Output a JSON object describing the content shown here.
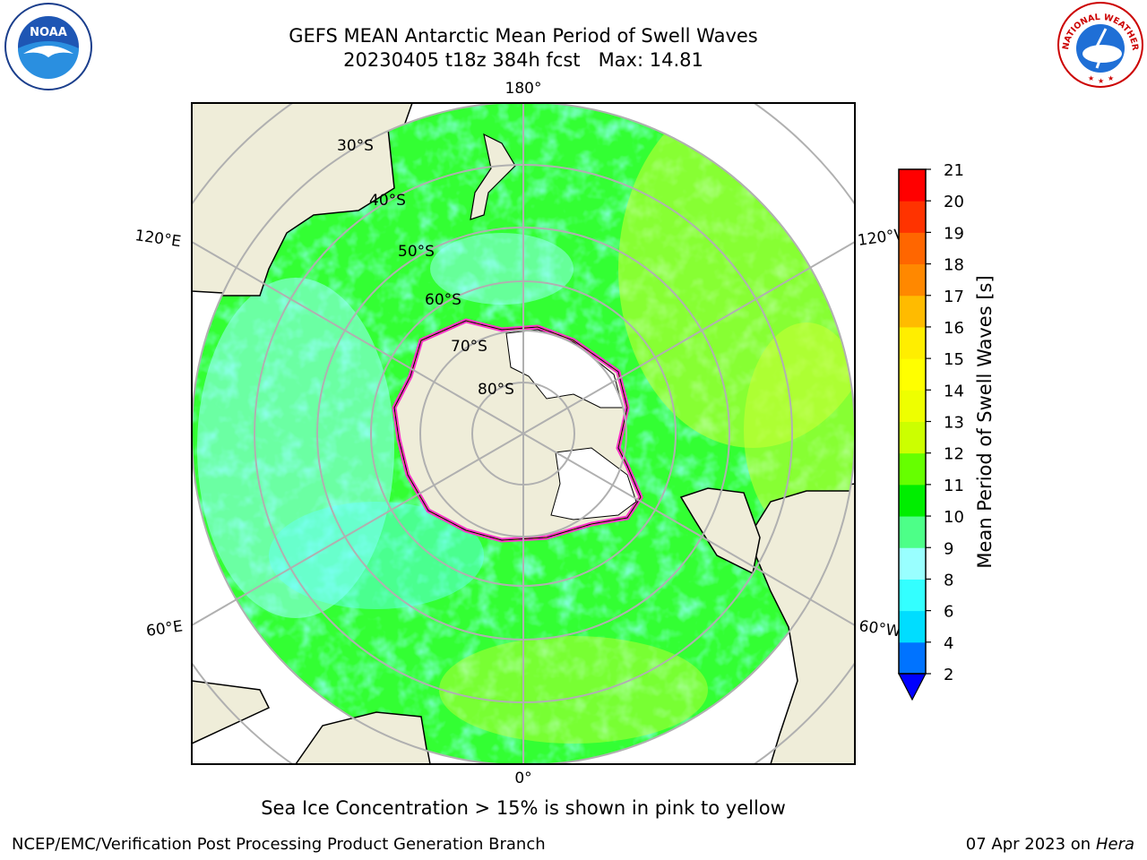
{
  "title": {
    "line1": "GEFS MEAN Antarctic Mean Period of Swell Waves",
    "line2": "20230405 t18z 384h fcst   Max: 14.81"
  },
  "map": {
    "projection": "south polar stereographic",
    "lon_labels": [
      "180°",
      "120°E",
      "120°W",
      "60°E",
      "60°W",
      "0°"
    ],
    "lat_labels": [
      "30°S",
      "40°S",
      "50°S",
      "60°S",
      "70°S",
      "80°S"
    ],
    "ocean_field_colors": [
      "#33ff33",
      "#11ee11",
      "#66ff66",
      "#99ffff",
      "#44ffff",
      "#ccff00"
    ],
    "land_color": "#efedd9",
    "ice_edge_colors": [
      "#ff33cc",
      "#ff99ff",
      "#ffcc33"
    ]
  },
  "colorbar": {
    "label": "Mean Period of Swell Waves [s]",
    "ticks": [
      "2",
      "4",
      "6",
      "8",
      "9",
      "10",
      "11",
      "12",
      "13",
      "14",
      "15",
      "16",
      "17",
      "18",
      "19",
      "20",
      "21"
    ],
    "colors": [
      "#0073ff",
      "#00ddff",
      "#33ffff",
      "#99ffff",
      "#4dff88",
      "#00ee00",
      "#66ff00",
      "#ccff00",
      "#eeff00",
      "#ffff00",
      "#ffee00",
      "#ffbb00",
      "#ff8800",
      "#ff6600",
      "#ff3300",
      "#ff0000"
    ],
    "under_color": "#0000ff"
  },
  "note": "Sea Ice Concentration > 15% is shown in pink to yellow",
  "footer": {
    "left": "NCEP/EMC/Verification Post Processing Product Generation Branch",
    "right_prefix": "07 Apr 2023 on ",
    "right_host": "Hera"
  },
  "logos": {
    "noaa_text": "NOAA",
    "nws_text": "NATIONAL WEATHER SERVICE"
  }
}
